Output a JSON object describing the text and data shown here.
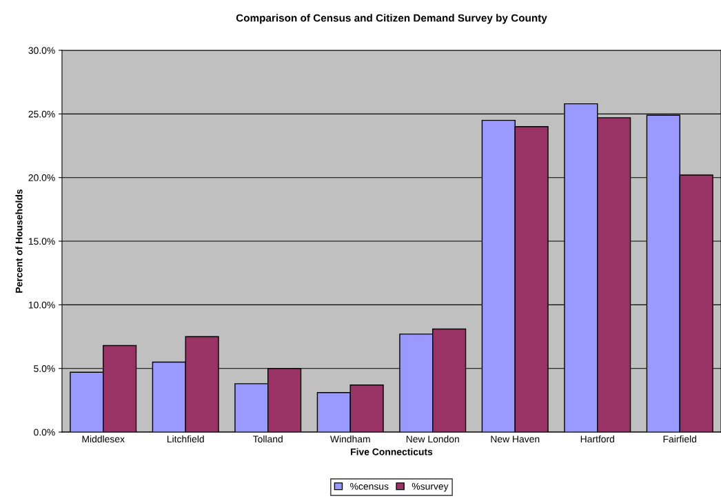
{
  "chart_data": {
    "type": "bar",
    "title": "Comparison of Census and Citizen Demand Survey by County",
    "xlabel": "Five Connecticuts",
    "ylabel": "Percent of Households",
    "categories": [
      "Middlesex",
      "Litchfield",
      "Tolland",
      "Windham",
      "New London",
      "New Haven",
      "Hartford",
      "Fairfield"
    ],
    "series": [
      {
        "name": "%census",
        "color": "#9999ff",
        "values": [
          4.7,
          5.5,
          3.8,
          3.1,
          7.7,
          24.5,
          25.8,
          24.9
        ]
      },
      {
        "name": "%survey",
        "color": "#993366",
        "values": [
          6.8,
          7.5,
          5.0,
          3.7,
          8.1,
          24.0,
          24.7,
          20.2
        ]
      }
    ],
    "ylim": [
      0,
      30
    ],
    "yticks": [
      {
        "value": 0,
        "label": "0.0%"
      },
      {
        "value": 5,
        "label": "5.0%"
      },
      {
        "value": 10,
        "label": "10.0%"
      },
      {
        "value": 15,
        "label": "15.0%"
      },
      {
        "value": 20,
        "label": "20.0%"
      },
      {
        "value": 25,
        "label": "25.0%"
      },
      {
        "value": 30,
        "label": "30.0%"
      }
    ],
    "grid": "y",
    "legend": "bottom"
  }
}
